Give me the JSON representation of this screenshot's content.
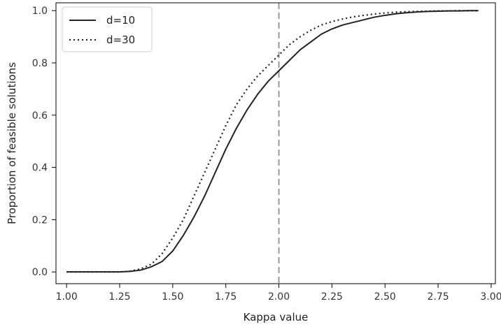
{
  "chart_data": {
    "type": "line",
    "title": "",
    "xlabel": "Kappa value",
    "ylabel": "Proportion of feasible solutions",
    "xlim": [
      0.95,
      3.02
    ],
    "ylim": [
      -0.045,
      1.03
    ],
    "xticks": [
      1.0,
      1.25,
      1.5,
      1.75,
      2.0,
      2.25,
      2.5,
      2.75,
      3.0
    ],
    "xtick_labels": [
      "1.00",
      "1.25",
      "1.50",
      "1.75",
      "2.00",
      "2.25",
      "2.50",
      "2.75",
      "3.00"
    ],
    "yticks": [
      0.0,
      0.2,
      0.4,
      0.6,
      0.8,
      1.0
    ],
    "ytick_labels": [
      "0.0",
      "0.2",
      "0.4",
      "0.6",
      "0.8",
      "1.0"
    ],
    "grid": false,
    "legend_position": "top-left",
    "reference_line": {
      "orientation": "vertical",
      "x": 2.0,
      "style": "dashed",
      "color": "#999999"
    },
    "series": [
      {
        "name": "d=10",
        "style": "solid",
        "color": "#222222",
        "x": [
          1.0,
          1.05,
          1.1,
          1.15,
          1.2,
          1.25,
          1.3,
          1.35,
          1.4,
          1.45,
          1.5,
          1.55,
          1.6,
          1.65,
          1.7,
          1.75,
          1.8,
          1.85,
          1.9,
          1.95,
          2.0,
          2.05,
          2.1,
          2.15,
          2.2,
          2.25,
          2.3,
          2.35,
          2.4,
          2.45,
          2.5,
          2.55,
          2.6,
          2.65,
          2.7,
          2.75,
          2.8,
          2.85,
          2.9,
          2.94
        ],
        "y": [
          0.0,
          0.0,
          0.0,
          0.0,
          0.0,
          0.0,
          0.002,
          0.007,
          0.02,
          0.04,
          0.08,
          0.14,
          0.21,
          0.29,
          0.38,
          0.47,
          0.55,
          0.62,
          0.68,
          0.73,
          0.77,
          0.81,
          0.85,
          0.88,
          0.91,
          0.93,
          0.945,
          0.955,
          0.965,
          0.975,
          0.982,
          0.988,
          0.992,
          0.995,
          0.997,
          0.998,
          0.999,
          0.999,
          1.0,
          1.0
        ]
      },
      {
        "name": "d=30",
        "style": "dotted",
        "color": "#222222",
        "x": [
          1.0,
          1.05,
          1.1,
          1.15,
          1.2,
          1.25,
          1.3,
          1.35,
          1.4,
          1.45,
          1.5,
          1.55,
          1.6,
          1.65,
          1.7,
          1.75,
          1.8,
          1.85,
          1.9,
          1.95,
          2.0,
          2.05,
          2.1,
          2.15,
          2.2,
          2.25,
          2.3,
          2.35,
          2.4,
          2.45,
          2.5,
          2.55,
          2.6,
          2.65,
          2.7,
          2.75,
          2.8,
          2.85,
          2.9,
          2.94
        ],
        "y": [
          0.0,
          0.0,
          0.0,
          0.0,
          0.0,
          0.0,
          0.003,
          0.012,
          0.03,
          0.07,
          0.13,
          0.2,
          0.29,
          0.38,
          0.47,
          0.56,
          0.64,
          0.7,
          0.75,
          0.79,
          0.83,
          0.87,
          0.9,
          0.925,
          0.945,
          0.958,
          0.968,
          0.976,
          0.982,
          0.987,
          0.991,
          0.994,
          0.996,
          0.997,
          0.998,
          0.999,
          0.999,
          1.0,
          1.0,
          1.0
        ]
      }
    ]
  }
}
